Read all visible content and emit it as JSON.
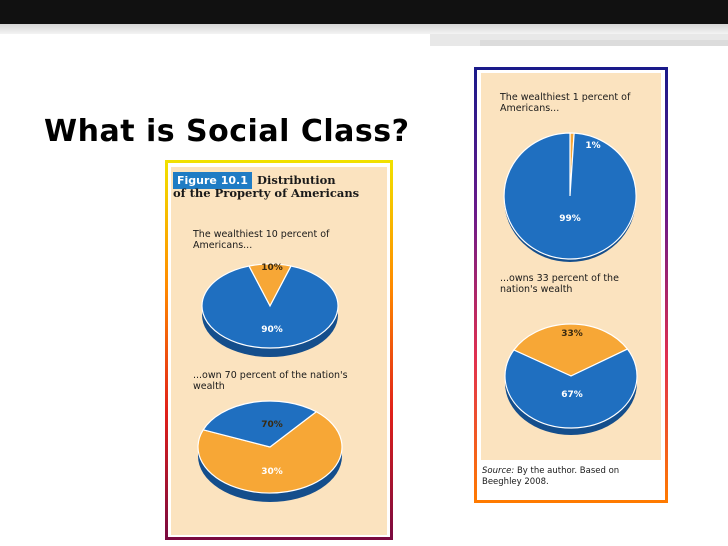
{
  "slide": {
    "title": "What is Social Class?"
  },
  "figure": {
    "badge": "Figure 10.1",
    "title_first": "Distribution",
    "title_rest": "of the Property of Americans",
    "source_prefix": "Source:",
    "source_text": "By the author. Based on Beeghley 2008."
  },
  "colors": {
    "blue": "#1f6fc0",
    "blue_dark": "#144e8c",
    "orange": "#f7a736",
    "orange_dark": "#c97a14",
    "panel": "#fbe3bf"
  },
  "chart_data": [
    {
      "type": "pie",
      "caption": "The wealthiest 10 percent of Americans...",
      "slices": [
        {
          "label": "10%",
          "value": 10,
          "color": "orange"
        },
        {
          "label": "90%",
          "value": 90,
          "color": "blue"
        }
      ]
    },
    {
      "type": "pie",
      "caption": "...own 70 percent of the nation's wealth",
      "slices": [
        {
          "label": "70%",
          "value": 70,
          "color": "orange"
        },
        {
          "label": "30%",
          "value": 30,
          "color": "blue"
        }
      ]
    },
    {
      "type": "pie",
      "caption": "The wealthiest 1 percent of Americans...",
      "slices": [
        {
          "label": "1%",
          "value": 1,
          "color": "orange"
        },
        {
          "label": "99%",
          "value": 99,
          "color": "blue"
        }
      ]
    },
    {
      "type": "pie",
      "caption": "...owns 33 percent of the nation's wealth",
      "slices": [
        {
          "label": "33%",
          "value": 33,
          "color": "orange"
        },
        {
          "label": "67%",
          "value": 67,
          "color": "blue"
        }
      ]
    }
  ]
}
